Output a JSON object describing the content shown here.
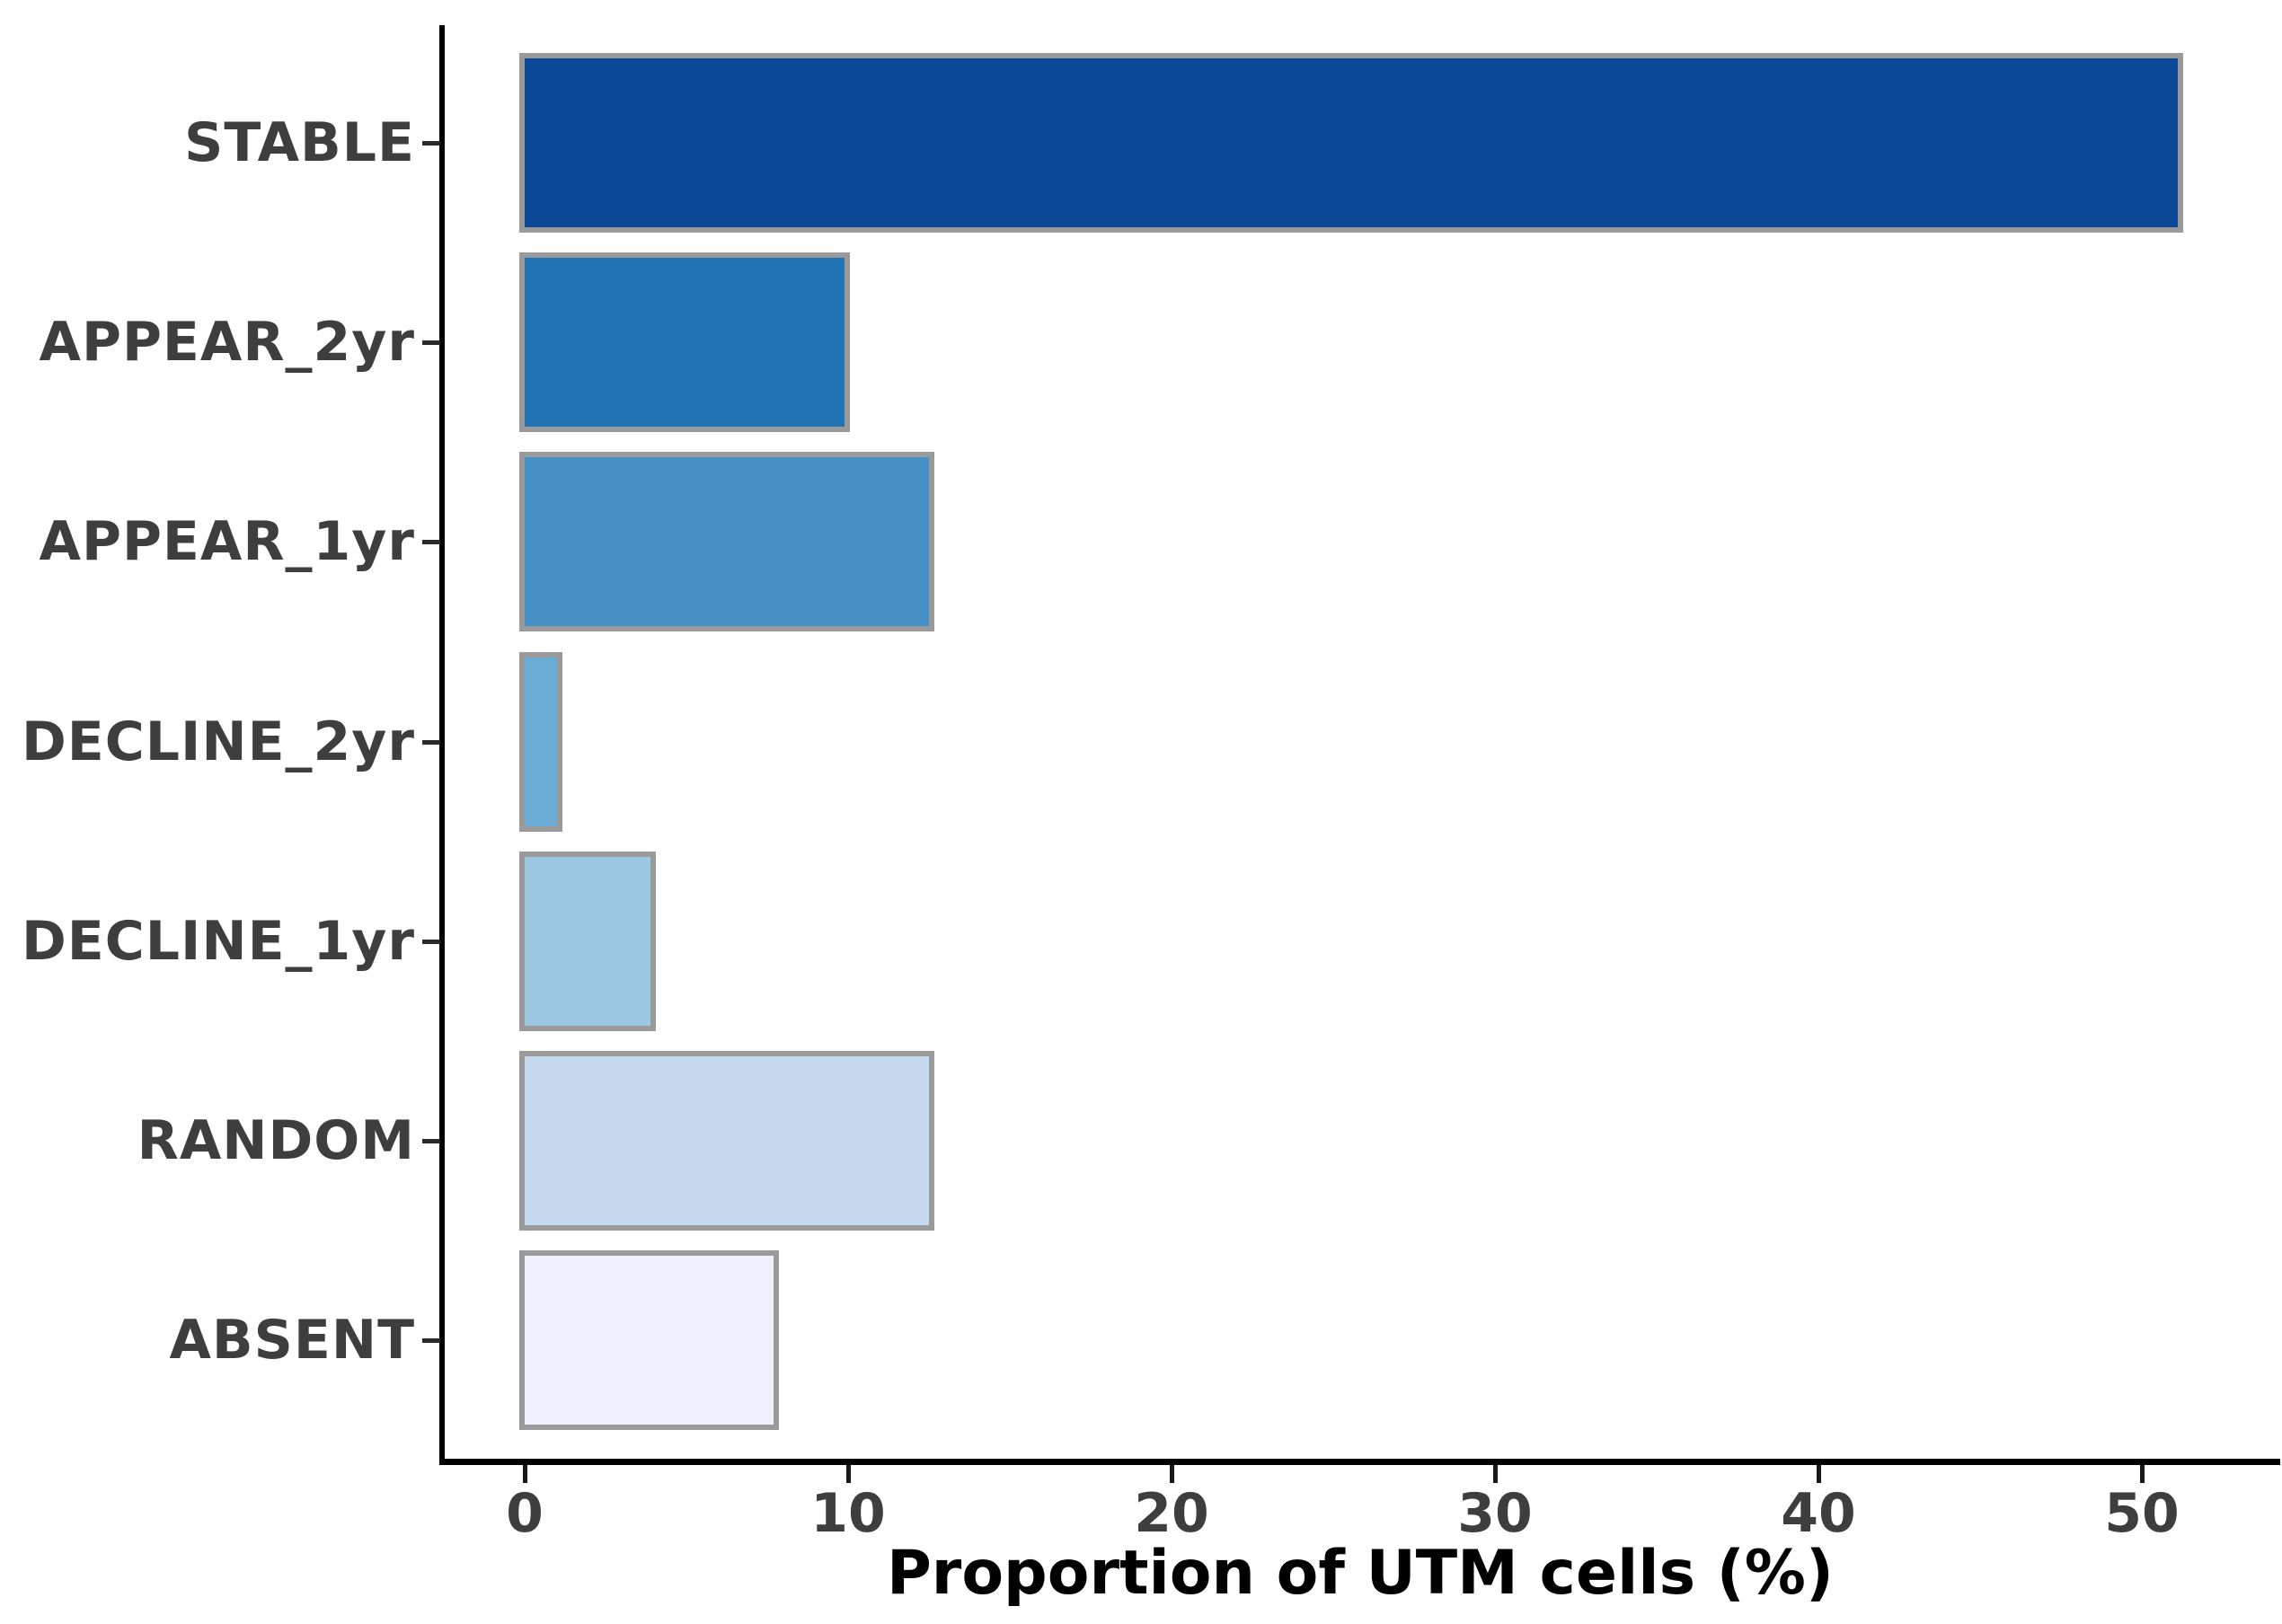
{
  "chart_data": {
    "type": "bar",
    "orientation": "horizontal",
    "title": "",
    "xlabel": "Proportion of UTM cells (%)",
    "ylabel": "",
    "xlim": [
      0,
      54
    ],
    "grid": false,
    "x_ticks": [
      {
        "value": 0,
        "label": "0"
      },
      {
        "value": 10,
        "label": "10"
      },
      {
        "value": 20,
        "label": "20"
      },
      {
        "value": 30,
        "label": "30"
      },
      {
        "value": 40,
        "label": "40"
      },
      {
        "value": 50,
        "label": "50"
      }
    ],
    "categories": [
      "STABLE",
      "APPEAR_2yr",
      "APPEAR_1yr",
      "DECLINE_2yr",
      "DECLINE_1yr",
      "RANDOM",
      "ABSENT"
    ],
    "values": [
      51.1,
      9.9,
      12.5,
      1.0,
      3.9,
      12.5,
      7.7
    ],
    "bar_colors": [
      "#0b4896",
      "#2173b4",
      "#4591c5",
      "#6badd7",
      "#9bc9e1",
      "#c6d9ee",
      "#eff2fe"
    ],
    "bar_border_color": "#9a9a9a",
    "axis_color": "#000000",
    "tick_label_color": "#3e3e3e",
    "category_label_color": "#3e3e3e"
  }
}
